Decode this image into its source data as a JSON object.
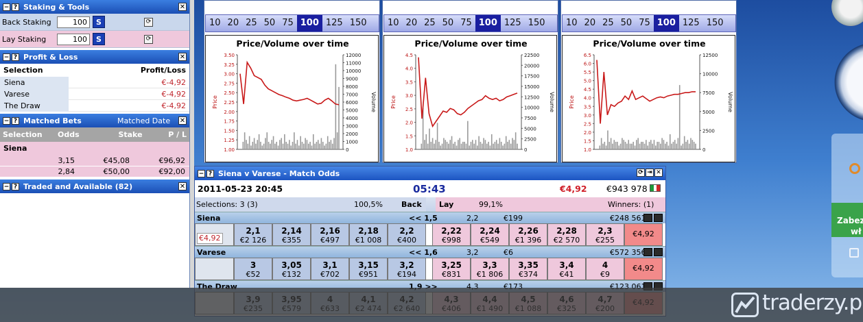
{
  "staking": {
    "title": "Staking & Tools",
    "back_label": "Back Staking",
    "back_value": "100",
    "lay_label": "Lay Staking",
    "lay_value": "100",
    "s_button": "S"
  },
  "pl": {
    "title": "Profit & Loss",
    "col_selection": "Selection",
    "col_pl": "Profit/Loss",
    "rows": [
      {
        "name": "Siena",
        "value": "€-4,92"
      },
      {
        "name": "Varese",
        "value": "€-4,92"
      },
      {
        "name": "The Draw",
        "value": "€-4,92"
      }
    ]
  },
  "matched": {
    "title": "Matched Bets",
    "sort_label": "Matched Date",
    "col_selection": "Selection",
    "col_odds": "Odds",
    "col_stake": "Stake",
    "col_pl": "P / L",
    "group": "Siena",
    "rows": [
      {
        "odds": "3,15",
        "stake": "€45,08",
        "pl": "€96,92"
      },
      {
        "odds": "2,84",
        "stake": "€50,00",
        "pl": "€92,00"
      }
    ]
  },
  "traded": {
    "title": "Traded and Available (82)"
  },
  "zoom_levels": [
    "10",
    "20",
    "25",
    "50",
    "75",
    "100",
    "125",
    "150"
  ],
  "zoom_selected": "100",
  "charts": [
    {
      "title": "Price/Volume over time",
      "y_label": "Price",
      "y2_label": "Volume",
      "price_ticks": [
        "3.50",
        "3.25",
        "3.00",
        "2.75",
        "2.50",
        "2.25",
        "2.00",
        "1.75",
        "1.50",
        "1.25",
        "1.00"
      ],
      "volume_ticks": [
        "12000",
        "11000",
        "10000",
        "9000",
        "8000",
        "7000",
        "6000",
        "5000",
        "4000",
        "3000",
        "2000",
        "1000",
        "0"
      ]
    },
    {
      "title": "Price/Volume over time",
      "y_label": "Price",
      "y2_label": "Volume",
      "price_ticks": [
        "4.5",
        "4.0",
        "3.5",
        "3.0",
        "2.5",
        "2.0",
        "1.5",
        "1.0"
      ],
      "volume_ticks": [
        "22500",
        "20000",
        "17500",
        "15000",
        "12500",
        "10000",
        "7500",
        "5000",
        "2500",
        "0"
      ]
    },
    {
      "title": "Price/Volume over time",
      "y_label": "Price",
      "y2_label": "Volume",
      "price_ticks": [
        "6.5",
        "6.0",
        "5.5",
        "5.0",
        "4.5",
        "4.0",
        "3.5",
        "3.0",
        "2.5",
        "2.0",
        "1.5",
        "1.0"
      ],
      "volume_ticks": [
        "12500",
        "10000",
        "7500",
        "5000",
        "2500",
        "0"
      ]
    }
  ],
  "chart_data": [
    {
      "type": "line",
      "title": "Price/Volume over time",
      "ylabel": "Price",
      "y2label": "Volume",
      "ylim": [
        1.0,
        3.5
      ],
      "y2lim": [
        0,
        12000
      ],
      "price_series": [
        3.0,
        2.2,
        3.3,
        3.15,
        2.95,
        2.9,
        2.85,
        2.7,
        2.6,
        2.55,
        2.5,
        2.45,
        2.42,
        2.38,
        2.35,
        2.3,
        2.28,
        2.3,
        2.32,
        2.35,
        2.3,
        2.25,
        2.2,
        2.22,
        2.3,
        2.35,
        2.28,
        2.2,
        2.18
      ]
    },
    {
      "type": "line",
      "title": "Price/Volume over time",
      "ylabel": "Price",
      "y2label": "Volume",
      "ylim": [
        1.0,
        4.7
      ],
      "y2lim": [
        0,
        22500
      ],
      "price_series": [
        4.6,
        2.2,
        3.8,
        2.4,
        1.9,
        2.1,
        2.3,
        2.5,
        2.45,
        2.6,
        2.55,
        2.4,
        2.35,
        2.45,
        2.6,
        2.7,
        2.8,
        2.9,
        2.95,
        3.1,
        3.0,
        2.95,
        3.0,
        2.9,
        2.95,
        3.05,
        3.1,
        3.15,
        3.2
      ]
    },
    {
      "type": "line",
      "title": "Price/Volume over time",
      "ylabel": "Price",
      "y2label": "Volume",
      "ylim": [
        1.0,
        6.5
      ],
      "y2lim": [
        0,
        12500
      ],
      "price_series": [
        6.2,
        2.5,
        5.5,
        3.0,
        3.6,
        3.5,
        3.7,
        3.8,
        4.1,
        3.9,
        4.4,
        3.9,
        4.0,
        4.1,
        3.95,
        3.8,
        3.9,
        4.0,
        4.05,
        4.0,
        4.1,
        4.15,
        4.2,
        4.2,
        4.25,
        4.3,
        4.3,
        4.35,
        4.35
      ]
    }
  ],
  "match": {
    "title": "Siena v Varese - Match Odds",
    "date": "2011-05-23  20:45",
    "countdown": "05:43",
    "liability": "€4,92",
    "matched_total": "€943 978",
    "selections": "Selections: 3 (3)",
    "back_pct": "100,5%",
    "back_label": "Back",
    "lay_label": "Lay",
    "lay_pct": "99,1%",
    "winners": "Winners: (1)",
    "runners": [
      {
        "name": "Siena",
        "arrow": "<< 1,5",
        "last": "2,2",
        "last_amt": "€199",
        "total": "€248 561",
        "pl": "€4,92",
        "pl_left": "€4,92",
        "back": [
          [
            "2,1",
            "€2 126"
          ],
          [
            "2,14",
            "€355"
          ],
          [
            "2,16",
            "€497"
          ],
          [
            "2,18",
            "€1 008"
          ],
          [
            "2,2",
            "€400"
          ]
        ],
        "lay": [
          [
            "2,22",
            "€998"
          ],
          [
            "2,24",
            "€549"
          ],
          [
            "2,26",
            "€1 396"
          ],
          [
            "2,28",
            "€2 570"
          ],
          [
            "2,3",
            "€255"
          ]
        ]
      },
      {
        "name": "Varese",
        "arrow": "<< 1,6",
        "last": "3,2",
        "last_amt": "€6",
        "total": "€572 356",
        "pl": "€4,92",
        "pl_left": "",
        "back": [
          [
            "3",
            "€52"
          ],
          [
            "3,05",
            "€132"
          ],
          [
            "3,1",
            "€702"
          ],
          [
            "3,15",
            "€951"
          ],
          [
            "3,2",
            "€194"
          ]
        ],
        "lay": [
          [
            "3,25",
            "€831"
          ],
          [
            "3,3",
            "€1 806"
          ],
          [
            "3,35",
            "€374"
          ],
          [
            "3,4",
            "€41"
          ],
          [
            "4",
            "€9"
          ]
        ]
      },
      {
        "name": "The Draw",
        "arrow": "1,9 >>",
        "last": "4,3",
        "last_amt": "€173",
        "total": "€123 061",
        "pl": "€4,92",
        "pl_left": "",
        "back": [
          [
            "3,9",
            "€235"
          ],
          [
            "3,95",
            "€579"
          ],
          [
            "4",
            "€633"
          ],
          [
            "4,1",
            "€2 474"
          ],
          [
            "4,2",
            "€2 640"
          ]
        ],
        "lay": [
          [
            "4,3",
            "€406"
          ],
          [
            "4,4",
            "€1 490"
          ],
          [
            "4,5",
            "€1 088"
          ],
          [
            "4,6",
            "€325"
          ],
          [
            "4,7",
            "€200"
          ]
        ]
      }
    ]
  },
  "desktop": {
    "gadget_text": "Zabez",
    "gadget_text2": "wł",
    "watermark": "traderzy.pl"
  }
}
